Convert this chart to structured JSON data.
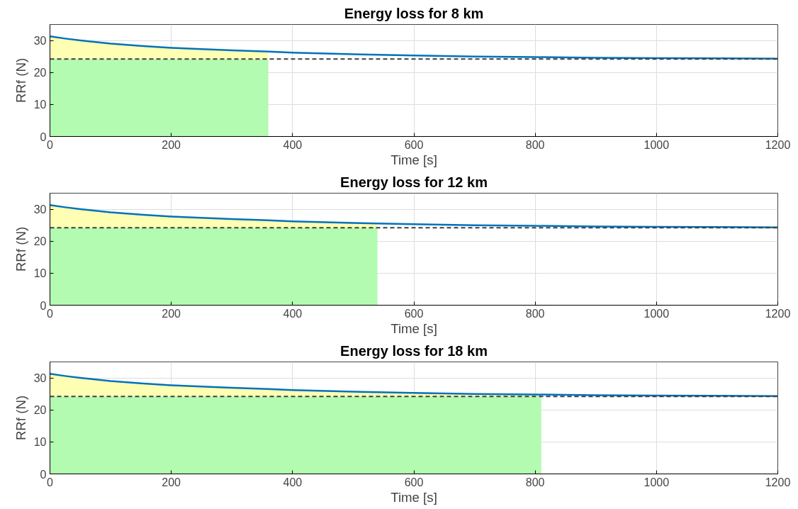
{
  "chart_data": [
    {
      "type": "line",
      "title": "Energy loss for 8 km",
      "xlabel": "Time [s]",
      "ylabel": "RRf (N)",
      "xlim": [
        0,
        1200
      ],
      "ylim": [
        0,
        35
      ],
      "xticks": [
        0,
        200,
        400,
        600,
        800,
        1000,
        1200
      ],
      "yticks": [
        0,
        10,
        20,
        30
      ],
      "grid": true,
      "stacked": true,
      "series": [
        {
          "type": "area",
          "color": "#b3fbb0",
          "x": [
            0,
            25,
            50,
            100,
            150,
            200,
            250,
            300,
            360
          ],
          "values": [
            24.2,
            24.2,
            24.2,
            24.2,
            24.2,
            24.2,
            24.2,
            24.2,
            24.2
          ]
        },
        {
          "type": "area",
          "color": "#ffffb3",
          "x": [
            0,
            25,
            50,
            100,
            150,
            200,
            250,
            300,
            360
          ],
          "values": [
            7.1,
            6.4,
            5.8,
            4.8,
            4.1,
            3.5,
            3.1,
            2.7,
            2.3
          ]
        },
        {
          "color": "#0072bd",
          "x": [
            0,
            25,
            50,
            100,
            150,
            200,
            250,
            300,
            360,
            400,
            500,
            600,
            700,
            800,
            900,
            1000,
            1100,
            1200
          ],
          "values": [
            31.3,
            30.6,
            30.0,
            29.0,
            28.3,
            27.7,
            27.3,
            26.9,
            26.5,
            26.2,
            25.7,
            25.3,
            25.0,
            24.8,
            24.6,
            24.5,
            24.4,
            24.3
          ]
        }
      ],
      "ref_lines": [
        {
          "axis": "y",
          "value": 24.2,
          "color": "#404040",
          "line_style": "dashed"
        }
      ]
    },
    {
      "type": "line",
      "title": "Energy loss for 12 km",
      "xlabel": "Time [s]",
      "ylabel": "RRf (N)",
      "xlim": [
        0,
        1200
      ],
      "ylim": [
        0,
        35
      ],
      "xticks": [
        0,
        200,
        400,
        600,
        800,
        1000,
        1200
      ],
      "yticks": [
        0,
        10,
        20,
        30
      ],
      "grid": true,
      "stacked": true,
      "series": [
        {
          "type": "area",
          "color": "#b3fbb0",
          "x": [
            0,
            25,
            50,
            100,
            150,
            200,
            250,
            300,
            360,
            400,
            500,
            540
          ],
          "values": [
            24.2,
            24.2,
            24.2,
            24.2,
            24.2,
            24.2,
            24.2,
            24.2,
            24.2,
            24.2,
            24.2,
            24.2
          ]
        },
        {
          "type": "area",
          "color": "#ffffb3",
          "x": [
            0,
            25,
            50,
            100,
            150,
            200,
            250,
            300,
            360,
            400,
            500,
            540
          ],
          "values": [
            7.1,
            6.4,
            5.8,
            4.8,
            4.1,
            3.5,
            3.1,
            2.7,
            2.3,
            2.0,
            1.5,
            1.2
          ]
        },
        {
          "color": "#0072bd",
          "x": [
            0,
            25,
            50,
            100,
            150,
            200,
            250,
            300,
            360,
            400,
            500,
            600,
            700,
            800,
            900,
            1000,
            1100,
            1200
          ],
          "values": [
            31.3,
            30.6,
            30.0,
            29.0,
            28.3,
            27.7,
            27.3,
            26.9,
            26.5,
            26.2,
            25.7,
            25.3,
            25.0,
            24.8,
            24.6,
            24.5,
            24.4,
            24.3
          ]
        }
      ],
      "ref_lines": [
        {
          "axis": "y",
          "value": 24.2,
          "color": "#404040",
          "line_style": "dashed"
        }
      ]
    },
    {
      "type": "line",
      "title": "Energy loss for 18 km",
      "xlabel": "Time [s]",
      "ylabel": "RRf (N)",
      "xlim": [
        0,
        1200
      ],
      "ylim": [
        0,
        35
      ],
      "xticks": [
        0,
        200,
        400,
        600,
        800,
        1000,
        1200
      ],
      "yticks": [
        0,
        10,
        20,
        30
      ],
      "grid": true,
      "stacked": true,
      "series": [
        {
          "type": "area",
          "color": "#b3fbb0",
          "x": [
            0,
            25,
            50,
            100,
            150,
            200,
            250,
            300,
            360,
            400,
            500,
            600,
            700,
            800,
            810
          ],
          "values": [
            24.2,
            24.2,
            24.2,
            24.2,
            24.2,
            24.2,
            24.2,
            24.2,
            24.2,
            24.2,
            24.2,
            24.2,
            24.2,
            24.2,
            24.2
          ]
        },
        {
          "type": "area",
          "color": "#ffffb3",
          "x": [
            0,
            25,
            50,
            100,
            150,
            200,
            250,
            300,
            360,
            400,
            500,
            600,
            700,
            800,
            810
          ],
          "values": [
            7.1,
            6.4,
            5.8,
            4.8,
            4.1,
            3.5,
            3.1,
            2.7,
            2.3,
            2.0,
            1.5,
            1.1,
            0.8,
            0.6,
            0.6
          ]
        },
        {
          "color": "#0072bd",
          "x": [
            0,
            25,
            50,
            100,
            150,
            200,
            250,
            300,
            360,
            400,
            500,
            600,
            700,
            800,
            900,
            1000,
            1100,
            1200
          ],
          "values": [
            31.3,
            30.6,
            30.0,
            29.0,
            28.3,
            27.7,
            27.3,
            26.9,
            26.5,
            26.2,
            25.7,
            25.3,
            25.0,
            24.8,
            24.6,
            24.5,
            24.4,
            24.3
          ]
        }
      ],
      "ref_lines": [
        {
          "axis": "y",
          "value": 24.2,
          "color": "#404040",
          "line_style": "dashed"
        }
      ]
    }
  ]
}
